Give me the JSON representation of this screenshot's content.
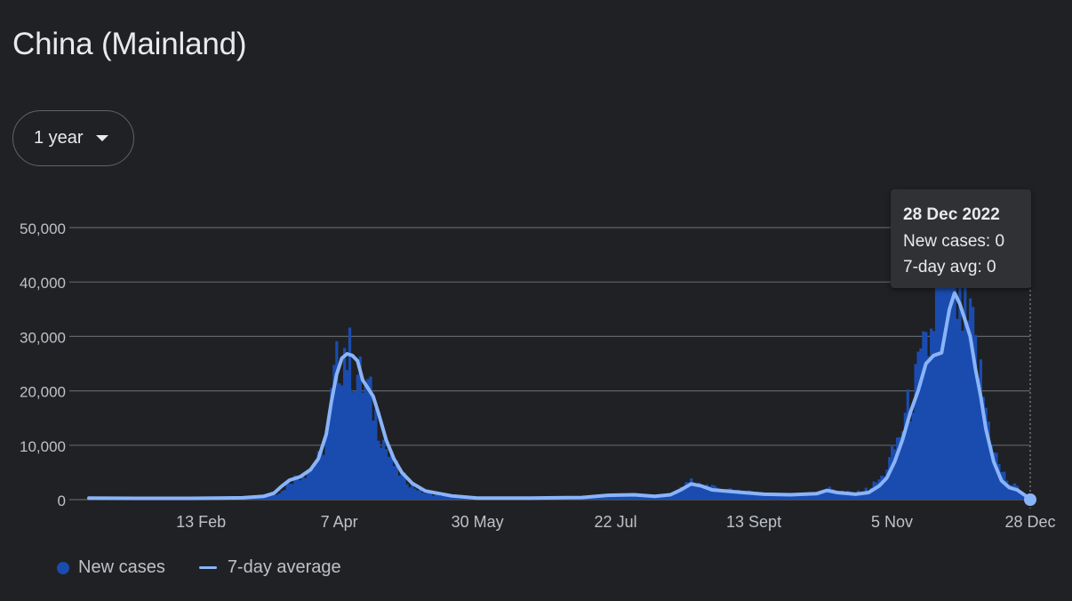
{
  "header": {
    "title": "China (Mainland)"
  },
  "controls": {
    "range_label": "1 year"
  },
  "tooltip": {
    "date": "28 Dec 2022",
    "new_cases_line": "New cases: 0",
    "avg_line": "7-day avg: 0"
  },
  "legend": {
    "new_cases": "New cases",
    "avg": "7-day average"
  },
  "colors": {
    "bar": "#1a4cb0",
    "line": "#8ab4f8",
    "grid": "#5f6368",
    "text": "#e8eaed",
    "background": "#202124"
  },
  "chart_data": {
    "type": "bar",
    "y_ticks": [
      {
        "value": 0,
        "label": "0"
      },
      {
        "value": 10000,
        "label": "10,000"
      },
      {
        "value": 20000,
        "label": "20,000"
      },
      {
        "value": 30000,
        "label": "30,000"
      },
      {
        "value": 40000,
        "label": "40,000"
      },
      {
        "value": 50000,
        "label": "50,000"
      }
    ],
    "ylim": [
      0,
      50000
    ],
    "x_range_days": [
      1,
      362
    ],
    "x_ticks": [
      {
        "day": 44,
        "label": "13 Feb"
      },
      {
        "day": 97,
        "label": "7 Apr"
      },
      {
        "day": 150,
        "label": "30 May"
      },
      {
        "day": 203,
        "label": "22 Jul"
      },
      {
        "day": 256,
        "label": "13 Sept"
      },
      {
        "day": 309,
        "label": "5 Nov"
      },
      {
        "day": 362,
        "label": "28 Dec"
      }
    ],
    "grid": true,
    "legend_position": "bottom-left",
    "series": [
      {
        "name": "New cases",
        "kind": "bar",
        "points": [
          [
            1,
            300
          ],
          [
            20,
            250
          ],
          [
            40,
            300
          ],
          [
            60,
            400
          ],
          [
            70,
            700
          ],
          [
            75,
            1500
          ],
          [
            78,
            3500
          ],
          [
            82,
            4500
          ],
          [
            86,
            5500
          ],
          [
            90,
            8000
          ],
          [
            93,
            14000
          ],
          [
            95,
            22000
          ],
          [
            97,
            26000
          ],
          [
            99,
            28000
          ],
          [
            101,
            26000
          ],
          [
            103,
            24000
          ],
          [
            105,
            22000
          ],
          [
            108,
            20000
          ],
          [
            112,
            14000
          ],
          [
            116,
            8000
          ],
          [
            120,
            5000
          ],
          [
            125,
            2500
          ],
          [
            130,
            1200
          ],
          [
            140,
            500
          ],
          [
            160,
            200
          ],
          [
            180,
            250
          ],
          [
            200,
            600
          ],
          [
            210,
            800
          ],
          [
            220,
            400
          ],
          [
            228,
            2000
          ],
          [
            232,
            3500
          ],
          [
            236,
            2800
          ],
          [
            240,
            2500
          ],
          [
            245,
            1800
          ],
          [
            250,
            1600
          ],
          [
            260,
            1000
          ],
          [
            280,
            1200
          ],
          [
            285,
            2000
          ],
          [
            290,
            1500
          ],
          [
            295,
            1200
          ],
          [
            300,
            2000
          ],
          [
            305,
            4000
          ],
          [
            308,
            7000
          ],
          [
            312,
            12000
          ],
          [
            316,
            18000
          ],
          [
            320,
            24000
          ],
          [
            324,
            30000
          ],
          [
            327,
            42000
          ],
          [
            330,
            45000
          ],
          [
            333,
            38000
          ],
          [
            336,
            34000
          ],
          [
            340,
            30000
          ],
          [
            343,
            22000
          ],
          [
            346,
            14000
          ],
          [
            350,
            6000
          ],
          [
            354,
            3000
          ],
          [
            358,
            2000
          ],
          [
            362,
            0
          ]
        ]
      },
      {
        "name": "7-day average",
        "kind": "line",
        "points": [
          [
            1,
            300
          ],
          [
            20,
            250
          ],
          [
            40,
            250
          ],
          [
            60,
            350
          ],
          [
            68,
            600
          ],
          [
            72,
            1200
          ],
          [
            75,
            2500
          ],
          [
            78,
            3600
          ],
          [
            82,
            4200
          ],
          [
            86,
            5500
          ],
          [
            89,
            7500
          ],
          [
            92,
            12000
          ],
          [
            94,
            18000
          ],
          [
            96,
            23000
          ],
          [
            98,
            26000
          ],
          [
            100,
            26800
          ],
          [
            102,
            26500
          ],
          [
            104,
            25500
          ],
          [
            106,
            22000
          ],
          [
            108,
            20500
          ],
          [
            110,
            19000
          ],
          [
            112,
            16000
          ],
          [
            115,
            11000
          ],
          [
            118,
            7500
          ],
          [
            121,
            5000
          ],
          [
            125,
            3000
          ],
          [
            130,
            1600
          ],
          [
            140,
            700
          ],
          [
            150,
            300
          ],
          [
            170,
            300
          ],
          [
            190,
            400
          ],
          [
            200,
            800
          ],
          [
            210,
            900
          ],
          [
            218,
            600
          ],
          [
            224,
            900
          ],
          [
            228,
            1800
          ],
          [
            232,
            2900
          ],
          [
            236,
            2500
          ],
          [
            240,
            1800
          ],
          [
            245,
            1600
          ],
          [
            252,
            1300
          ],
          [
            260,
            1000
          ],
          [
            270,
            900
          ],
          [
            280,
            1100
          ],
          [
            284,
            1700
          ],
          [
            288,
            1300
          ],
          [
            295,
            1000
          ],
          [
            300,
            1300
          ],
          [
            304,
            2500
          ],
          [
            307,
            4000
          ],
          [
            310,
            7000
          ],
          [
            313,
            11000
          ],
          [
            316,
            16000
          ],
          [
            319,
            20000
          ],
          [
            322,
            25000
          ],
          [
            325,
            26500
          ],
          [
            328,
            27000
          ],
          [
            331,
            35000
          ],
          [
            333,
            38000
          ],
          [
            335,
            36000
          ],
          [
            337,
            33000
          ],
          [
            339,
            30000
          ],
          [
            341,
            24000
          ],
          [
            343,
            19000
          ],
          [
            345,
            13000
          ],
          [
            348,
            7000
          ],
          [
            351,
            3500
          ],
          [
            354,
            2200
          ],
          [
            357,
            1800
          ],
          [
            360,
            800
          ],
          [
            362,
            0
          ]
        ]
      }
    ]
  }
}
